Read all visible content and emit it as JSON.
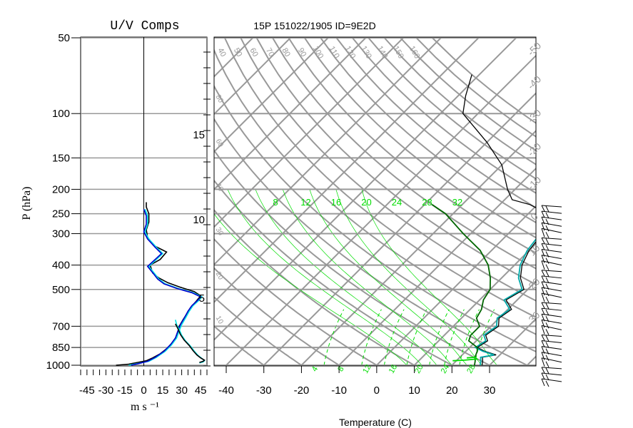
{
  "figure": {
    "title": "15P 151022/1905 ID=9E2D",
    "uv_panel_title": "U/V Comps",
    "pressure_axis_label": "P (hPa)",
    "uv_axis_label": "m s ⁻¹",
    "temperature_axis_label": "Temperature (C)"
  },
  "chart_data": [
    {
      "type": "line",
      "name": "uv-components",
      "title": "U/V Comps",
      "xlabel": "m s ⁻¹",
      "ylabel": "P (hPa)",
      "xlim": [
        -50,
        50
      ],
      "x_ticks": [
        -45,
        -30,
        -15,
        0,
        15,
        30,
        45
      ],
      "y_scale": "log",
      "ylim": [
        1000,
        50
      ],
      "y_ticks": [
        50,
        100,
        150,
        200,
        250,
        300,
        400,
        500,
        700,
        850,
        1000
      ],
      "series": [
        {
          "color": "#000000",
          "points": [
            [
              -22,
              1000
            ],
            [
              -12,
              990
            ],
            [
              -5,
              975
            ],
            [
              2,
              960
            ],
            [
              7,
              935
            ],
            [
              13,
              900
            ],
            [
              18,
              860
            ],
            [
              22,
              820
            ],
            [
              25,
              780
            ],
            [
              27,
              740
            ],
            [
              28,
              700
            ],
            [
              31,
              660
            ],
            [
              34,
              625
            ],
            [
              37,
              590
            ],
            [
              41,
              560
            ],
            [
              45,
              530
            ],
            [
              40,
              510
            ],
            [
              29,
              490
            ],
            [
              19,
              470
            ],
            [
              12,
              450
            ],
            [
              7,
              430
            ],
            [
              5,
              400
            ],
            [
              13,
              380
            ],
            [
              18,
              355
            ],
            [
              8,
              335
            ],
            [
              3,
              310
            ],
            [
              2,
              290
            ],
            [
              4,
              270
            ],
            [
              4,
              250
            ],
            [
              2,
              235
            ],
            [
              2,
              225
            ]
          ]
        },
        {
          "color": "#00e5e5",
          "points": [
            [
              -12,
              1000
            ],
            [
              -5,
              985
            ],
            [
              4,
              965
            ],
            [
              10,
              930
            ],
            [
              17,
              880
            ],
            [
              22,
              830
            ],
            [
              26,
              780
            ],
            [
              28,
              730
            ],
            [
              30,
              690
            ],
            [
              33,
              650
            ],
            [
              36,
              610
            ],
            [
              39,
              580
            ],
            [
              44,
              550
            ],
            [
              46,
              535
            ],
            [
              39,
              515
            ],
            [
              27,
              495
            ],
            [
              17,
              475
            ],
            [
              12,
              455
            ],
            [
              9,
              435
            ],
            [
              4,
              405
            ],
            [
              10,
              380
            ],
            [
              15,
              360
            ],
            [
              10,
              340
            ],
            [
              4,
              315
            ],
            [
              1,
              295
            ],
            [
              3,
              275
            ],
            [
              3,
              255
            ],
            [
              1,
              240
            ]
          ]
        },
        {
          "color": "#0000cc",
          "points": [
            [
              -10,
              1000
            ],
            [
              -4,
              985
            ],
            [
              3,
              965
            ],
            [
              9,
              930
            ],
            [
              16,
              880
            ],
            [
              21,
              830
            ],
            [
              25,
              780
            ],
            [
              27,
              730
            ],
            [
              29,
              690
            ],
            [
              32,
              650
            ],
            [
              35,
              610
            ],
            [
              38,
              580
            ],
            [
              43,
              550
            ],
            [
              45,
              535
            ],
            [
              38,
              515
            ],
            [
              26,
              495
            ],
            [
              16,
              475
            ],
            [
              11,
              455
            ],
            [
              8,
              435
            ],
            [
              3,
              405
            ],
            [
              9,
              380
            ],
            [
              14,
              360
            ],
            [
              9,
              340
            ],
            [
              3,
              315
            ],
            [
              0,
              295
            ],
            [
              2,
              275
            ],
            [
              2,
              255
            ],
            [
              0,
              240
            ]
          ]
        },
        {
          "color": "#00e5e5",
          "points": [
            [
              44,
              980
            ],
            [
              47,
              970
            ],
            [
              48,
              960
            ],
            [
              46,
              940
            ],
            [
              43,
              915
            ],
            [
              40,
              880
            ],
            [
              37,
              840
            ],
            [
              33,
              800
            ],
            [
              30,
              760
            ],
            [
              28,
              720
            ],
            [
              26,
              690
            ],
            [
              25,
              660
            ]
          ]
        },
        {
          "color": "#000000",
          "points": [
            [
              44,
              975
            ],
            [
              47,
              965
            ],
            [
              48,
              955
            ],
            [
              45,
              935
            ],
            [
              42,
              910
            ],
            [
              39,
              875
            ],
            [
              36,
              835
            ],
            [
              32,
              795
            ],
            [
              29,
              755
            ],
            [
              27,
              715
            ],
            [
              25,
              685
            ]
          ]
        }
      ],
      "zero_line": 0
    },
    {
      "type": "line",
      "name": "skew-t",
      "title": "15P 151022/1905 ID=9E2D",
      "xlabel": "Temperature (C)",
      "xlim": [
        -40,
        30
      ],
      "x_ticks": [
        -40,
        -30,
        -20,
        -10,
        0,
        10,
        20,
        30
      ],
      "km_ticks": [
        5,
        10,
        15
      ],
      "y_scale": "log",
      "ylim": [
        1000,
        50
      ],
      "y_ticks": [
        50,
        100,
        150,
        200,
        250,
        300,
        400,
        500,
        700,
        850,
        1000
      ],
      "skew_isotherm_labels": [
        -50,
        -40,
        -30,
        -20,
        -10,
        0,
        10,
        20,
        30
      ],
      "moist_adiabat_labels": [
        8,
        12,
        16,
        20,
        24,
        28,
        32
      ],
      "theta_labels_top": [
        40,
        50,
        60,
        70,
        80,
        90,
        100,
        110,
        120,
        130,
        140,
        150,
        160
      ],
      "theta_labels_left": [
        80,
        60,
        40,
        30,
        20,
        10
      ],
      "mixing_ratio_labels": [
        "4",
        "8",
        "12",
        "16",
        "20",
        "24",
        "28"
      ],
      "series": [
        {
          "name": "",
          "color": "#000000",
          "points": [
            [
              28,
              1000
            ],
            [
              27,
              960
            ],
            [
              26,
              930
            ],
            [
              29,
              910
            ],
            [
              25,
              880
            ],
            [
              22,
              850
            ],
            [
              23,
              800
            ],
            [
              21,
              760
            ],
            [
              22,
              700
            ],
            [
              20,
              650
            ],
            [
              21,
              600
            ],
            [
              17,
              550
            ],
            [
              19,
              500
            ],
            [
              15,
              450
            ],
            [
              12,
              400
            ],
            [
              10,
              350
            ],
            [
              9,
              300
            ],
            [
              5,
              250
            ],
            [
              -2,
              230
            ],
            [
              -8,
              220
            ],
            [
              -12,
              200
            ],
            [
              -20,
              160
            ],
            [
              -30,
              130
            ],
            [
              -44,
              100
            ],
            [
              -48,
              85
            ],
            [
              -52,
              70
            ]
          ]
        },
        {
          "name": "",
          "color": "#00aaaa",
          "points": [
            [
              27.5,
              1000
            ],
            [
              26.5,
              960
            ],
            [
              25.5,
              930
            ],
            [
              28.5,
              910
            ],
            [
              24.5,
              880
            ],
            [
              21.5,
              850
            ],
            [
              22.5,
              800
            ],
            [
              20.5,
              760
            ],
            [
              21.5,
              700
            ],
            [
              19.5,
              650
            ],
            [
              20.5,
              600
            ],
            [
              16.5,
              550
            ],
            [
              18.5,
              500
            ],
            [
              14.5,
              450
            ],
            [
              11.5,
              400
            ],
            [
              9.5,
              350
            ],
            [
              8.5,
              300
            ],
            [
              4.5,
              250
            ]
          ]
        },
        {
          "name": "",
          "color": "#006600",
          "points": [
            [
              26,
              1000
            ],
            [
              25,
              960
            ],
            [
              24,
              930
            ],
            [
              23,
              880
            ],
            [
              22,
              850
            ],
            [
              18,
              800
            ],
            [
              17,
              760
            ],
            [
              17,
              700
            ],
            [
              14,
              650
            ],
            [
              13,
              600
            ],
            [
              11,
              550
            ],
            [
              10,
              500
            ],
            [
              7,
              450
            ],
            [
              3,
              400
            ],
            [
              -3,
              350
            ],
            [
              -12,
              300
            ],
            [
              -22,
              250
            ],
            [
              -28,
              230
            ]
          ]
        },
        {
          "name": "",
          "color": "#00dd00",
          "points": [
            [
              19,
              960
            ],
            [
              22,
              955
            ],
            [
              25,
              945
            ],
            [
              24,
              930
            ],
            [
              22,
              935
            ]
          ]
        }
      ],
      "wind_barbs_count": 28
    }
  ]
}
